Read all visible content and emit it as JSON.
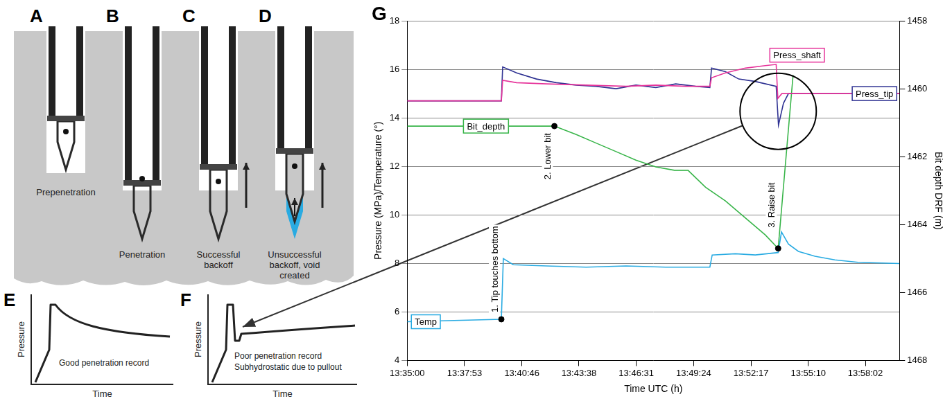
{
  "diagram": {
    "panels": [
      {
        "letter": "A",
        "caption": "Prepenetration"
      },
      {
        "letter": "B",
        "caption": "Penetration"
      },
      {
        "letter": "C",
        "caption": "Successful backoff"
      },
      {
        "letter": "D",
        "caption": "Unsuccessful backoff, void created"
      }
    ],
    "records": [
      {
        "letter": "E",
        "y_label": "Pressure",
        "x_label": "Time",
        "caption": [
          "Good penetration record"
        ]
      },
      {
        "letter": "F",
        "y_label": "Pressure",
        "x_label": "Time",
        "caption": [
          "Poor penetration record",
          "Subhydrostatic due to pullout"
        ]
      }
    ]
  },
  "chart_data": {
    "type": "line",
    "panel_label": "G",
    "x_label": "Time UTC (h)",
    "y_label": "Pressure (MPa)/Temperature (°)",
    "y2_label": "Bit depth DRF (m)",
    "xlim": [
      "13:35:00",
      "13:59:45"
    ],
    "xticks": [
      "13:35:00",
      "13:37:53",
      "13:40:46",
      "13:43:38",
      "13:46:31",
      "13:49:24",
      "13:52:17",
      "13:55:10",
      "13:58:02"
    ],
    "ylim": [
      4,
      18
    ],
    "yticks": [
      4,
      6,
      8,
      10,
      12,
      14,
      16,
      18
    ],
    "y2lim": [
      1468,
      1458
    ],
    "y2ticks": [
      1458,
      1460,
      1462,
      1464,
      1466,
      1468
    ],
    "grid": true,
    "series": [
      {
        "name": "Press_shaft",
        "color": "#e6339a",
        "x": [
          "13:35:00",
          "13:39:44",
          "13:39:48",
          "13:40:30",
          "13:42:00",
          "13:44:00",
          "13:46:00",
          "13:47:30",
          "13:49:00",
          "13:50:13",
          "13:50:18",
          "13:51:00",
          "13:52:00",
          "13:53:00",
          "13:53:33",
          "13:53:38",
          "13:53:50",
          "13:59:45"
        ],
        "values": [
          14.7,
          14.7,
          15.55,
          15.45,
          15.4,
          15.35,
          15.3,
          15.35,
          15.3,
          15.3,
          15.65,
          15.85,
          16.05,
          16.15,
          16.2,
          14.8,
          15.0,
          15.0
        ]
      },
      {
        "name": "Press_tip",
        "color": "#2e3192",
        "x": [
          "13:35:00",
          "13:39:44",
          "13:39:48",
          "13:40:30",
          "13:41:30",
          "13:42:30",
          "13:43:30",
          "13:44:30",
          "13:45:30",
          "13:46:30",
          "13:47:30",
          "13:48:30",
          "13:49:30",
          "13:50:13",
          "13:50:18",
          "13:51:00",
          "13:51:40",
          "13:52:30",
          "13:53:33",
          "13:53:40",
          "13:53:55",
          "13:54:10",
          "13:59:45"
        ],
        "values": [
          14.7,
          14.7,
          16.1,
          15.85,
          15.6,
          15.45,
          15.35,
          15.3,
          15.2,
          15.35,
          15.25,
          15.4,
          15.3,
          15.25,
          16.05,
          15.9,
          15.6,
          15.5,
          15.3,
          13.7,
          14.6,
          15.0,
          15.0
        ]
      },
      {
        "name": "Bit_depth",
        "color": "#39b54a",
        "axis": "y2",
        "x": [
          "13:35:00",
          "13:42:24",
          "13:43:30",
          "13:44:30",
          "13:45:30",
          "13:46:30",
          "13:47:30",
          "13:48:26",
          "13:49:07",
          "13:50:00",
          "13:51:00",
          "13:52:00",
          "13:53:00",
          "13:53:39",
          "13:54:24"
        ],
        "values": [
          1461.1,
          1461.1,
          1461.35,
          1461.6,
          1461.85,
          1462.1,
          1462.3,
          1462.4,
          1462.4,
          1462.9,
          1463.3,
          1463.8,
          1464.3,
          1464.7,
          1459.6
        ]
      },
      {
        "name": "Temp",
        "color": "#29abe2",
        "x": [
          "13:35:00",
          "13:39:44",
          "13:39:50",
          "13:40:20",
          "13:42:00",
          "13:44:00",
          "13:46:00",
          "13:48:00",
          "13:50:13",
          "13:50:20",
          "13:51:30",
          "13:52:30",
          "13:53:39",
          "13:53:49",
          "13:54:10",
          "13:54:40",
          "13:55:30",
          "13:56:30",
          "13:57:40",
          "13:59:45"
        ],
        "values": [
          5.6,
          5.7,
          8.2,
          7.95,
          7.9,
          7.85,
          7.9,
          7.85,
          7.85,
          8.35,
          8.4,
          8.35,
          8.45,
          9.3,
          8.8,
          8.5,
          8.3,
          8.15,
          8.05,
          8.0
        ]
      }
    ],
    "annotations": [
      {
        "text": "1. Tip touches bottom",
        "x": "13:39:44",
        "y": 5.7,
        "axis": "y"
      },
      {
        "text": "2. Lower bit",
        "x": "13:42:24",
        "y": 1461.1,
        "axis": "y2"
      },
      {
        "text": "3. Raise bit",
        "x": "13:53:39",
        "y": 1464.7,
        "axis": "y2"
      }
    ]
  }
}
